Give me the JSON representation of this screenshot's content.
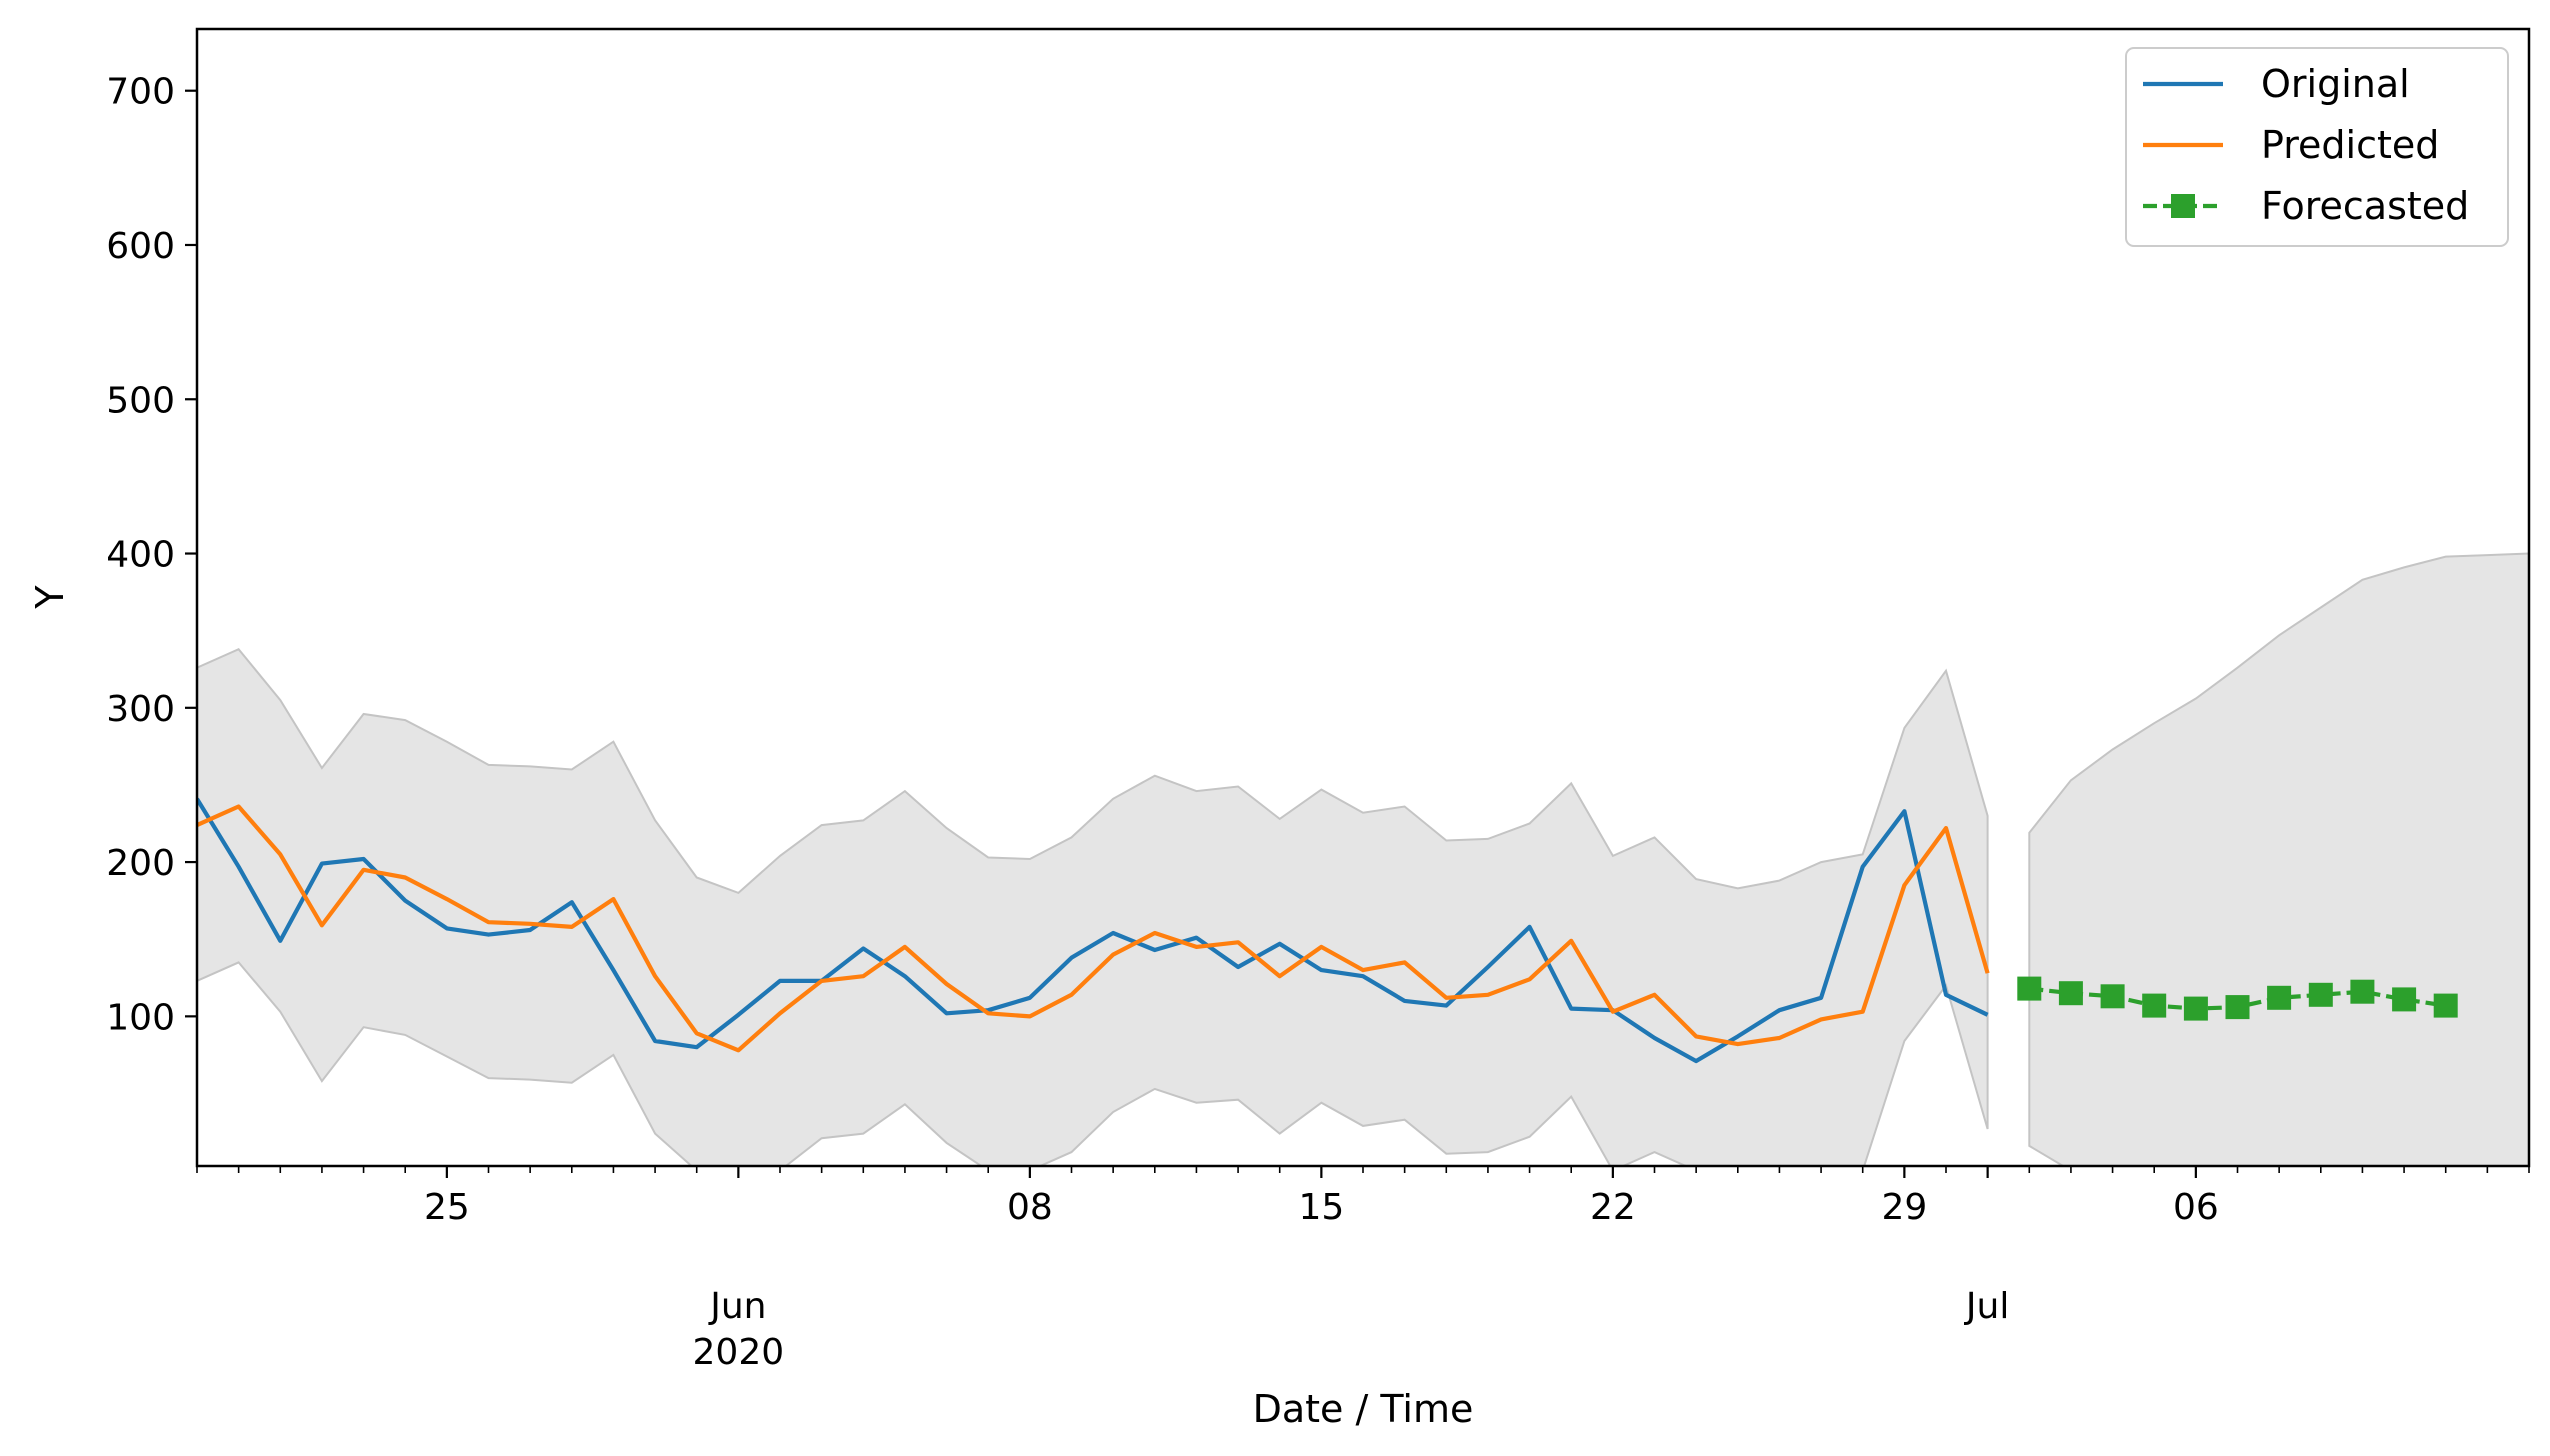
{
  "chart_data": {
    "type": "line",
    "xlabel": "Date / Time",
    "ylabel": "Y",
    "ylim": [
      3,
      740
    ],
    "xlim": [
      "2020-05-19",
      "2020-07-14"
    ],
    "yticks": [
      100,
      200,
      300,
      400,
      500,
      600,
      700
    ],
    "xticks_major": [
      {
        "date": "2020-05-25",
        "label": "25"
      },
      {
        "date": "2020-06-01",
        "label": "Jun\n2020"
      },
      {
        "date": "2020-06-08",
        "label": "08"
      },
      {
        "date": "2020-06-15",
        "label": "15"
      },
      {
        "date": "2020-06-22",
        "label": "22"
      },
      {
        "date": "2020-06-29",
        "label": "29"
      },
      {
        "date": "2020-07-01",
        "label": "Jul"
      },
      {
        "date": "2020-07-06",
        "label": "06"
      }
    ],
    "legend": {
      "position": "top-right"
    },
    "series": [
      {
        "name": "Original",
        "color": "#1f77b4",
        "style": "solid",
        "x": [
          "2020-05-19",
          "2020-05-20",
          "2020-05-21",
          "2020-05-22",
          "2020-05-23",
          "2020-05-24",
          "2020-05-25",
          "2020-05-26",
          "2020-05-27",
          "2020-05-28",
          "2020-05-29",
          "2020-05-30",
          "2020-05-31",
          "2020-06-01",
          "2020-06-02",
          "2020-06-03",
          "2020-06-04",
          "2020-06-05",
          "2020-06-06",
          "2020-06-07",
          "2020-06-08",
          "2020-06-09",
          "2020-06-10",
          "2020-06-11",
          "2020-06-12",
          "2020-06-13",
          "2020-06-14",
          "2020-06-15",
          "2020-06-16",
          "2020-06-17",
          "2020-06-18",
          "2020-06-19",
          "2020-06-20",
          "2020-06-21",
          "2020-06-22",
          "2020-06-23",
          "2020-06-24",
          "2020-06-25",
          "2020-06-26",
          "2020-06-27",
          "2020-06-28",
          "2020-06-29",
          "2020-06-30",
          "2020-07-01"
        ],
        "values": [
          241,
          197,
          149,
          199,
          202,
          175,
          157,
          153,
          156,
          174,
          130,
          84,
          80,
          101,
          123,
          123,
          144,
          126,
          102,
          104,
          112,
          138,
          154,
          143,
          151,
          132,
          147,
          130,
          126,
          110,
          107,
          132,
          158,
          105,
          104,
          86,
          71,
          87,
          104,
          112,
          197,
          233,
          114,
          101
        ]
      },
      {
        "name": "Predicted",
        "color": "#ff7f0e",
        "style": "solid",
        "x": [
          "2020-05-19",
          "2020-05-20",
          "2020-05-21",
          "2020-05-22",
          "2020-05-23",
          "2020-05-24",
          "2020-05-25",
          "2020-05-26",
          "2020-05-27",
          "2020-05-28",
          "2020-05-29",
          "2020-05-30",
          "2020-05-31",
          "2020-06-01",
          "2020-06-02",
          "2020-06-03",
          "2020-06-04",
          "2020-06-05",
          "2020-06-06",
          "2020-06-07",
          "2020-06-08",
          "2020-06-09",
          "2020-06-10",
          "2020-06-11",
          "2020-06-12",
          "2020-06-13",
          "2020-06-14",
          "2020-06-15",
          "2020-06-16",
          "2020-06-17",
          "2020-06-18",
          "2020-06-19",
          "2020-06-20",
          "2020-06-21",
          "2020-06-22",
          "2020-06-23",
          "2020-06-24",
          "2020-06-25",
          "2020-06-26",
          "2020-06-27",
          "2020-06-28",
          "2020-06-29",
          "2020-06-30",
          "2020-07-01"
        ],
        "values": [
          224,
          236,
          205,
          159,
          195,
          190,
          176,
          161,
          160,
          158,
          176,
          126,
          89,
          78,
          102,
          123,
          126,
          145,
          121,
          102,
          100,
          114,
          140,
          154,
          145,
          148,
          126,
          145,
          130,
          135,
          112,
          114,
          124,
          149,
          103,
          114,
          87,
          82,
          86,
          98,
          103,
          185,
          222,
          128
        ]
      },
      {
        "name": "Forecasted",
        "color": "#2ca02c",
        "style": "dashed",
        "marker": "square",
        "x": [
          "2020-07-02",
          "2020-07-03",
          "2020-07-04",
          "2020-07-05",
          "2020-07-06",
          "2020-07-07",
          "2020-07-08",
          "2020-07-09",
          "2020-07-10",
          "2020-07-11",
          "2020-07-12"
        ],
        "values": [
          118,
          115,
          113,
          107,
          105,
          106,
          112,
          114,
          116,
          111,
          107
        ]
      }
    ],
    "confidence_band": {
      "color": "#d3d3d3",
      "segments": [
        {
          "x": [
            "2020-05-19",
            "2020-05-20",
            "2020-05-21",
            "2020-05-22",
            "2020-05-23",
            "2020-05-24",
            "2020-05-25",
            "2020-05-26",
            "2020-05-27",
            "2020-05-28",
            "2020-05-29",
            "2020-05-30",
            "2020-05-31",
            "2020-06-01",
            "2020-06-02",
            "2020-06-03",
            "2020-06-04",
            "2020-06-05",
            "2020-06-06",
            "2020-06-07",
            "2020-06-08",
            "2020-06-09",
            "2020-06-10",
            "2020-06-11",
            "2020-06-12",
            "2020-06-13",
            "2020-06-14",
            "2020-06-15",
            "2020-06-16",
            "2020-06-17",
            "2020-06-18",
            "2020-06-19",
            "2020-06-20",
            "2020-06-21",
            "2020-06-22",
            "2020-06-23",
            "2020-06-24",
            "2020-06-25",
            "2020-06-26",
            "2020-06-27",
            "2020-06-28",
            "2020-06-29",
            "2020-06-30",
            "2020-07-01"
          ],
          "upper": [
            326,
            338,
            305,
            261,
            296,
            292,
            278,
            263,
            262,
            260,
            278,
            227,
            190,
            180,
            204,
            224,
            227,
            246,
            222,
            203,
            202,
            216,
            241,
            256,
            246,
            249,
            228,
            247,
            232,
            236,
            214,
            215,
            225,
            251,
            204,
            216,
            189,
            183,
            188,
            200,
            205,
            287,
            324,
            230
          ],
          "lower": [
            123,
            135,
            103,
            58,
            93,
            88,
            74,
            60,
            59,
            57,
            75,
            24,
            0,
            0,
            0,
            21,
            24,
            43,
            18,
            0,
            0,
            12,
            38,
            53,
            44,
            46,
            24,
            44,
            29,
            33,
            11,
            12,
            22,
            48,
            0,
            12,
            0,
            0,
            0,
            0,
            0,
            84,
            120,
            27
          ]
        },
        {
          "x": [
            "2020-07-02",
            "2020-07-03",
            "2020-07-04",
            "2020-07-05",
            "2020-07-06",
            "2020-07-07",
            "2020-07-08",
            "2020-07-09",
            "2020-07-10",
            "2020-07-11",
            "2020-07-12",
            "2020-07-13",
            "2020-07-14"
          ],
          "upper": [
            219,
            253,
            273,
            290,
            306,
            326,
            347,
            365,
            383,
            391,
            398,
            399,
            400
          ],
          "lower": [
            16,
            0,
            0,
            0,
            0,
            0,
            0,
            0,
            0,
            0,
            0,
            0,
            0
          ]
        }
      ]
    }
  }
}
